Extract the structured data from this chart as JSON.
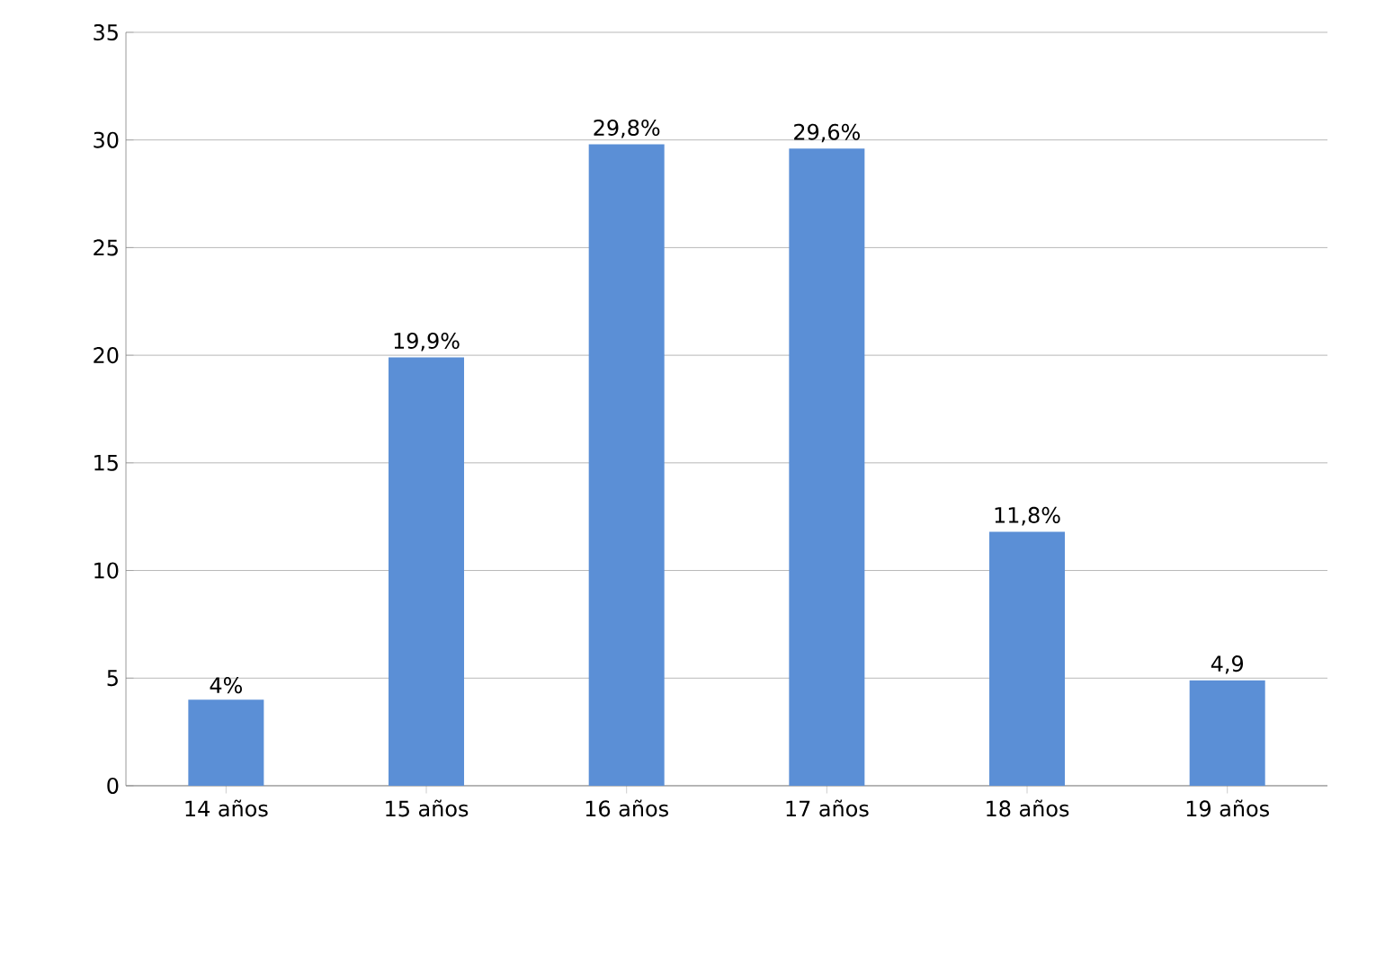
{
  "chart_data": {
    "type": "bar",
    "categories": [
      "14 años",
      "15 años",
      "16 años",
      "17 años",
      "18 años",
      "19 años"
    ],
    "values": [
      4,
      19.9,
      29.8,
      29.6,
      11.8,
      4.9
    ],
    "value_labels": [
      "4%",
      "19,9%",
      "29,8%",
      "29,6%",
      "11,8%",
      "4,9"
    ],
    "color": "#5b8fd6",
    "ylim": [
      0,
      35
    ],
    "yticks": [
      0,
      5,
      10,
      15,
      20,
      25,
      30,
      35
    ],
    "grid": "y"
  }
}
